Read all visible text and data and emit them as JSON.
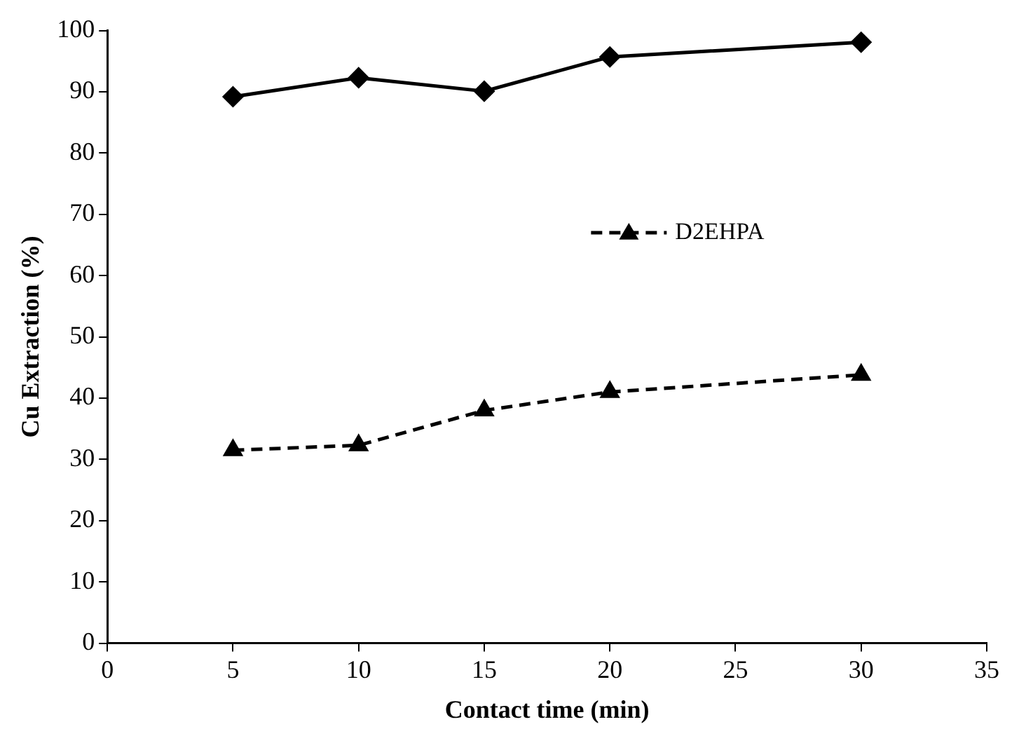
{
  "chart_data": {
    "type": "line",
    "xlabel": "Contact time (min)",
    "ylabel": "Cu Extraction (%)",
    "x": [
      5,
      10,
      15,
      20,
      30
    ],
    "series": [
      {
        "color": "#000000",
        "marker": "diamond",
        "line_style": "solid",
        "values": [
          89.2,
          92.3,
          90.1,
          95.7,
          98.1
        ]
      },
      {
        "name": "D2EHPA",
        "color": "#000000",
        "marker": "triangle",
        "line_style": "dashed",
        "values": [
          31.5,
          32.3,
          38,
          41,
          43.8
        ]
      }
    ],
    "xlim": [
      0,
      35
    ],
    "xticks": [
      0,
      5,
      10,
      15,
      20,
      25,
      30,
      35
    ],
    "ylim": [
      0,
      100
    ],
    "yticks": [
      0,
      10,
      20,
      30,
      40,
      50,
      60,
      70,
      80,
      90,
      100
    ],
    "grid": false,
    "legend": "right"
  }
}
